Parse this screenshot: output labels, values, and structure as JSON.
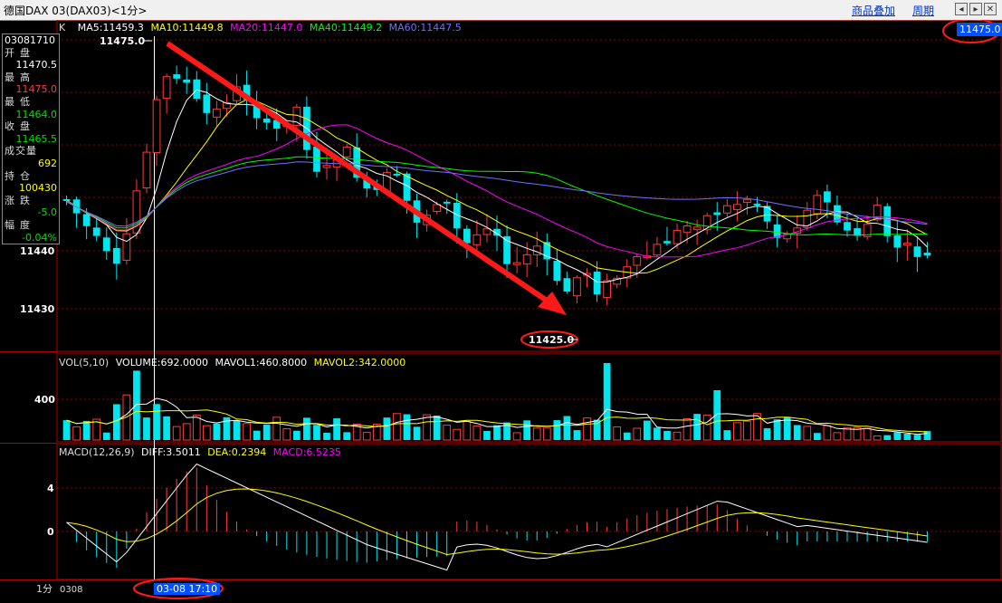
{
  "window": {
    "title": "德国DAX 03(DAX03)<1分>",
    "menu_overlay": "商品叠加",
    "menu_period": "周期",
    "btn_prev": "◂",
    "btn_next": "▸",
    "btn_close": "✕"
  },
  "main_panel": {
    "label": "K",
    "ma5": "MA5:11459.3",
    "ma10": "MA10:11449.8",
    "ma20": "MA20:11447.0",
    "ma40": "MA40:11449.2",
    "ma60": "MA60:11447.5",
    "high_marker": "11475.0",
    "low_marker": "11425.0",
    "current_price": "11475.0",
    "y_ticks": [
      "11440",
      "11430"
    ]
  },
  "info_box": {
    "time": "03081710",
    "open_label": "开盘",
    "open": "11470.5",
    "high_label": "最高",
    "high": "11475.0",
    "low_label": "最低",
    "low": "11464.0",
    "close_label": "收盘",
    "close": "11465.5",
    "volume_label": "成交量",
    "volume": "692",
    "oi_label": "持仓",
    "oi": "100430",
    "change_label": "涨跌",
    "change": "-5.0",
    "pct_label": "幅度",
    "pct": "-0.04%"
  },
  "volume_panel": {
    "label": "VOL(5,10)",
    "volume": "VOLUME:692.0000",
    "mavol1": "MAVOL1:460.8000",
    "mavol2": "MAVOL2:342.0000",
    "y_tick": "400"
  },
  "macd_panel": {
    "label": "MACD(12,26,9)",
    "diff": "DIFF:3.5011",
    "dea": "DEA:0.2394",
    "macd": "MACD:6.5235",
    "y_ticks": [
      "4",
      "0"
    ]
  },
  "footer": {
    "period": "1分",
    "date": "0308",
    "cursor_time": "03-08 17:10"
  },
  "colors": {
    "up": "#ff3b3b",
    "down": "#00e5ee",
    "ma5": "#ffffff",
    "ma10": "#ffff00",
    "ma20": "#ff00ff",
    "ma40": "#00ff00",
    "ma60": "#7070ff",
    "annotation": "#ff0000"
  },
  "chart_data": {
    "type": "candlestick",
    "bars": 87,
    "price_range_visible": [
      11425.0,
      11475.0
    ],
    "annotations": [
      {
        "type": "arrow",
        "from_price": 11475.0,
        "to_price": 11430.5,
        "direction": "down"
      },
      {
        "type": "circle",
        "label": "11425.0"
      },
      {
        "type": "circle",
        "label": "11475.0"
      },
      {
        "type": "circle",
        "label": "03-08 17:10"
      }
    ]
  }
}
